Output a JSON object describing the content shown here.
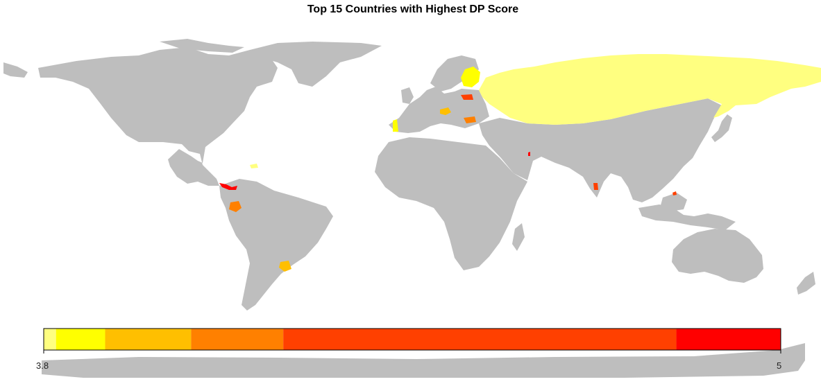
{
  "title": "Top 15 Countries with Highest DP Score",
  "colors": {
    "land": "#bebebe",
    "background": "#ffffff"
  },
  "legend": {
    "min_label": "3.8",
    "max_label": "5",
    "min": 3.8,
    "max": 5,
    "bins": [
      {
        "from": 3.8,
        "to": 3.82,
        "color": "#ffff80"
      },
      {
        "from": 3.82,
        "to": 3.9,
        "color": "#ffff00"
      },
      {
        "from": 3.9,
        "to": 4.04,
        "color": "#ffbf00"
      },
      {
        "from": 4.04,
        "to": 4.19,
        "color": "#ff8000"
      },
      {
        "from": 4.19,
        "to": 4.83,
        "color": "#ff4000"
      },
      {
        "from": 4.83,
        "to": 5.0,
        "color": "#ff0000"
      }
    ]
  },
  "highlighted_regions": [
    {
      "region": "Russia",
      "color": "#ffff80"
    },
    {
      "region": "Finland",
      "color": "#ffff00"
    },
    {
      "region": "Portugal",
      "color": "#ffff00"
    },
    {
      "region": "Dominican Republic",
      "color": "#ffff80"
    },
    {
      "region": "Hungary",
      "color": "#ffbf00"
    },
    {
      "region": "Uruguay",
      "color": "#ffbf00"
    },
    {
      "region": "Bulgaria",
      "color": "#ff8000"
    },
    {
      "region": "Ecuador",
      "color": "#ff8000"
    },
    {
      "region": "Lithuania",
      "color": "#ff4000"
    },
    {
      "region": "Sri Lanka",
      "color": "#ff4000"
    },
    {
      "region": "Brunei",
      "color": "#ff4000"
    },
    {
      "region": "Panama / Costa Rica",
      "color": "#ff0000"
    },
    {
      "region": "Qatar",
      "color": "#ff0000"
    }
  ]
}
